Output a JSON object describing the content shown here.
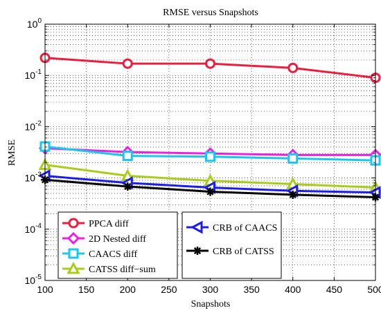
{
  "chart_data": {
    "type": "line",
    "title": "RMSE versus Snapshots",
    "xlabel": "Snapshots",
    "ylabel": "RMSE",
    "x": [
      100,
      200,
      300,
      400,
      500
    ],
    "xlim": [
      100,
      500
    ],
    "xticks": [
      100,
      150,
      200,
      250,
      300,
      350,
      400,
      450,
      500
    ],
    "yscale": "log",
    "ylim": [
      1e-05,
      1
    ],
    "yticks": [
      {
        "base": "10",
        "exp": "-5",
        "value": 1e-05
      },
      {
        "base": "10",
        "exp": "-4",
        "value": 0.0001
      },
      {
        "base": "10",
        "exp": "-3",
        "value": 0.001
      },
      {
        "base": "10",
        "exp": "-2",
        "value": 0.01
      },
      {
        "base": "10",
        "exp": "-1",
        "value": 0.1
      },
      {
        "base": "10",
        "exp": "0",
        "value": 1
      }
    ],
    "grid": true,
    "series": [
      {
        "name": "PPCA diff",
        "color": "#ee1c3e",
        "marker": "circle",
        "values": [
          0.22,
          0.17,
          0.17,
          0.14,
          0.09
        ]
      },
      {
        "name": "2D Nested diff",
        "color": "#ee1ee2",
        "marker": "diamond",
        "values": [
          0.0038,
          0.0032,
          0.003,
          0.0028,
          0.0028
        ]
      },
      {
        "name": "CAACS diff",
        "color": "#18c7ee",
        "marker": "square",
        "values": [
          0.0041,
          0.0027,
          0.0026,
          0.0024,
          0.0022
        ]
      },
      {
        "name": "CATSS diff−sum",
        "color": "#a8cc1c",
        "marker": "triangle-up",
        "values": [
          0.0018,
          0.0011,
          0.00088,
          0.00076,
          0.00065
        ]
      },
      {
        "name": "CRB of CAACS",
        "color": "#1c1cee",
        "marker": "triangle-left",
        "values": [
          0.0011,
          0.0008,
          0.00065,
          0.00056,
          0.00052
        ]
      },
      {
        "name": "CRB of CATSS",
        "color": "#000000",
        "marker": "asterisk",
        "values": [
          0.00092,
          0.00068,
          0.00054,
          0.00047,
          0.00042
        ]
      }
    ],
    "legend": {
      "placement": "bottom",
      "boxes": [
        {
          "items": [
            0,
            1,
            2,
            3
          ]
        },
        {
          "items": [
            4,
            5
          ]
        }
      ]
    }
  }
}
